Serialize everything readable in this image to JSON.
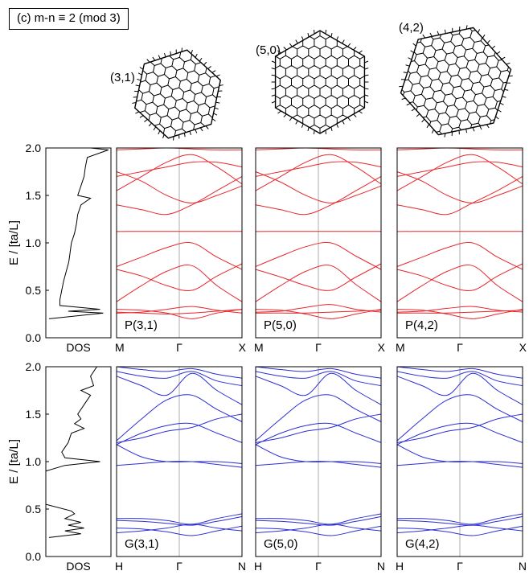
{
  "title": "(c) m-n ≡ 2 (mod 3)",
  "colors": {
    "p_bands": "#e8262c",
    "g_bands": "#2b2fd6",
    "dos": "#000000",
    "gamma_line": "#9a9a9a"
  },
  "flakes": [
    {
      "label": "(3,1)"
    },
    {
      "label": "(5,0)"
    },
    {
      "label": "(4,2)"
    }
  ],
  "ylabel": "E / [ta/L]",
  "y_ticks": [
    "0.0",
    "0.5",
    "1.0",
    "1.5",
    "2.0"
  ],
  "dos_label": "DOS",
  "chart_data": [
    {
      "type": "line",
      "row": "P",
      "ylim": [
        0,
        2.0
      ],
      "grid": false,
      "dos": {
        "label": "DOS",
        "energy": [
          0.2,
          0.26,
          0.28,
          0.3,
          0.34,
          0.4,
          0.5,
          0.6,
          0.7,
          0.8,
          0.9,
          1.0,
          1.1,
          1.2,
          1.3,
          1.4,
          1.47,
          1.5,
          1.6,
          1.7,
          1.8,
          1.9,
          1.98,
          2.0
        ],
        "density": [
          0.05,
          0.9,
          0.35,
          0.85,
          0.22,
          0.22,
          0.25,
          0.28,
          0.32,
          0.36,
          0.38,
          0.4,
          0.45,
          0.48,
          0.5,
          0.55,
          0.7,
          0.5,
          0.55,
          0.6,
          0.62,
          0.65,
          0.98,
          0.7
        ]
      },
      "panels": [
        {
          "label": "P(3,1)",
          "x_ticks": [
            "M",
            "Γ",
            "X"
          ],
          "bands": [
            [
              0.26,
              0.27,
              0.3,
              0.33,
              0.29,
              0.26
            ],
            [
              0.3,
              0.29,
              0.26,
              0.2,
              0.26,
              0.3
            ],
            [
              0.27,
              0.26,
              0.25,
              0.26,
              0.28,
              0.3
            ],
            [
              0.38,
              0.55,
              0.7,
              0.76,
              0.55,
              0.38
            ],
            [
              0.72,
              0.65,
              0.55,
              0.5,
              0.65,
              0.78
            ],
            [
              0.75,
              0.85,
              0.95,
              1.0,
              0.85,
              0.72
            ],
            [
              1.12,
              1.12,
              1.12,
              1.12,
              1.12,
              1.12
            ],
            [
              1.4,
              1.35,
              1.3,
              1.4,
              1.55,
              1.7
            ],
            [
              1.75,
              1.65,
              1.5,
              1.42,
              1.5,
              1.6
            ],
            [
              1.55,
              1.7,
              1.85,
              1.93,
              1.8,
              1.62
            ],
            [
              1.7,
              1.75,
              1.8,
              1.85,
              1.85,
              1.8
            ],
            [
              1.98,
              1.99,
              2.0,
              1.99,
              1.98,
              1.98
            ]
          ]
        },
        {
          "label": "P(5,0)",
          "x_ticks": [
            "M",
            "Γ",
            "X"
          ],
          "bands": [
            [
              0.27,
              0.28,
              0.32,
              0.35,
              0.3,
              0.27
            ],
            [
              0.3,
              0.29,
              0.25,
              0.2,
              0.25,
              0.3
            ],
            [
              0.26,
              0.26,
              0.26,
              0.27,
              0.28,
              0.29
            ],
            [
              0.38,
              0.55,
              0.7,
              0.76,
              0.56,
              0.38
            ],
            [
              0.72,
              0.64,
              0.55,
              0.5,
              0.64,
              0.78
            ],
            [
              0.75,
              0.86,
              0.96,
              1.0,
              0.86,
              0.72
            ],
            [
              1.12,
              1.12,
              1.12,
              1.12,
              1.12,
              1.12
            ],
            [
              1.4,
              1.35,
              1.3,
              1.4,
              1.55,
              1.7
            ],
            [
              1.75,
              1.64,
              1.5,
              1.42,
              1.5,
              1.6
            ],
            [
              1.55,
              1.7,
              1.85,
              1.93,
              1.8,
              1.62
            ],
            [
              1.7,
              1.75,
              1.8,
              1.85,
              1.85,
              1.8
            ],
            [
              1.98,
              1.99,
              2.0,
              1.99,
              1.98,
              1.98
            ]
          ]
        },
        {
          "label": "P(4,2)",
          "x_ticks": [
            "M",
            "Γ",
            "X"
          ],
          "bands": [
            [
              0.27,
              0.28,
              0.31,
              0.33,
              0.29,
              0.27
            ],
            [
              0.3,
              0.29,
              0.25,
              0.2,
              0.25,
              0.3
            ],
            [
              0.26,
              0.26,
              0.26,
              0.27,
              0.28,
              0.29
            ],
            [
              0.38,
              0.55,
              0.7,
              0.76,
              0.55,
              0.38
            ],
            [
              0.72,
              0.65,
              0.55,
              0.5,
              0.65,
              0.78
            ],
            [
              0.75,
              0.85,
              0.95,
              1.0,
              0.85,
              0.72
            ],
            [
              1.12,
              1.12,
              1.12,
              1.12,
              1.12,
              1.12
            ],
            [
              1.4,
              1.35,
              1.3,
              1.42,
              1.55,
              1.7
            ],
            [
              1.75,
              1.65,
              1.5,
              1.42,
              1.5,
              1.6
            ],
            [
              1.55,
              1.7,
              1.85,
              1.93,
              1.8,
              1.62
            ],
            [
              1.7,
              1.75,
              1.8,
              1.85,
              1.85,
              1.8
            ],
            [
              1.98,
              1.99,
              2.0,
              1.99,
              1.98,
              1.98
            ]
          ]
        }
      ]
    },
    {
      "type": "line",
      "row": "G",
      "ylim": [
        0,
        2.0
      ],
      "grid": false,
      "dos": {
        "label": "DOS",
        "energy": [
          0.2,
          0.24,
          0.27,
          0.3,
          0.33,
          0.36,
          0.4,
          0.45,
          0.48,
          0.55,
          0.7,
          0.9,
          0.96,
          1.0,
          1.04,
          1.1,
          1.2,
          1.3,
          1.35,
          1.4,
          1.45,
          1.5,
          1.6,
          1.7,
          1.75,
          1.8,
          1.9,
          2.0
        ],
        "density": [
          0.05,
          0.55,
          0.3,
          0.6,
          0.35,
          0.55,
          0.3,
          0.45,
          0.4,
          0.0,
          0.0,
          0.0,
          0.3,
          0.85,
          0.3,
          0.25,
          0.35,
          0.4,
          0.6,
          0.45,
          0.55,
          0.5,
          0.6,
          0.7,
          0.55,
          0.75,
          0.7,
          0.8
        ]
      },
      "panels": [
        {
          "label": "G(3,1)",
          "x_ticks": [
            "H",
            "Γ",
            "N"
          ],
          "bands": [
            [
              0.25,
              0.27,
              0.3,
              0.34,
              0.3,
              0.27
            ],
            [
              0.3,
              0.29,
              0.26,
              0.22,
              0.27,
              0.32
            ],
            [
              0.38,
              0.37,
              0.35,
              0.33,
              0.37,
              0.42
            ],
            [
              0.4,
              0.4,
              0.38,
              0.34,
              0.4,
              0.45
            ],
            [
              0.96,
              0.98,
              1.0,
              1.0,
              0.97,
              0.94
            ],
            [
              1.18,
              1.05,
              1.0,
              1.0,
              1.0,
              0.98
            ],
            [
              1.18,
              1.3,
              1.38,
              1.4,
              1.3,
              1.2
            ],
            [
              1.2,
              1.25,
              1.32,
              1.36,
              1.45,
              1.5
            ],
            [
              1.22,
              1.45,
              1.65,
              1.7,
              1.55,
              1.42
            ],
            [
              1.9,
              1.8,
              1.7,
              1.93,
              1.75,
              1.6
            ],
            [
              1.95,
              1.9,
              1.88,
              1.95,
              1.85,
              1.8
            ],
            [
              2.0,
              1.97,
              1.95,
              1.98,
              1.92,
              1.88
            ]
          ]
        },
        {
          "label": "G(5,0)",
          "x_ticks": [
            "H",
            "Γ",
            "N"
          ],
          "bands": [
            [
              0.25,
              0.27,
              0.3,
              0.34,
              0.3,
              0.27
            ],
            [
              0.3,
              0.29,
              0.26,
              0.22,
              0.27,
              0.32
            ],
            [
              0.38,
              0.37,
              0.35,
              0.33,
              0.37,
              0.42
            ],
            [
              0.4,
              0.4,
              0.38,
              0.34,
              0.4,
              0.45
            ],
            [
              0.96,
              0.98,
              1.0,
              1.0,
              0.97,
              0.94
            ],
            [
              1.18,
              1.05,
              1.0,
              1.0,
              1.0,
              0.98
            ],
            [
              1.18,
              1.3,
              1.38,
              1.4,
              1.3,
              1.2
            ],
            [
              1.2,
              1.25,
              1.32,
              1.36,
              1.45,
              1.5
            ],
            [
              1.22,
              1.45,
              1.65,
              1.7,
              1.55,
              1.42
            ],
            [
              1.9,
              1.8,
              1.7,
              1.93,
              1.75,
              1.6
            ],
            [
              1.95,
              1.9,
              1.88,
              1.95,
              1.85,
              1.8
            ],
            [
              2.0,
              1.97,
              1.95,
              1.98,
              1.92,
              1.88
            ]
          ]
        },
        {
          "label": "G(4,2)",
          "x_ticks": [
            "H",
            "Γ",
            "N"
          ],
          "bands": [
            [
              0.25,
              0.27,
              0.3,
              0.33,
              0.3,
              0.27
            ],
            [
              0.3,
              0.29,
              0.26,
              0.22,
              0.27,
              0.32
            ],
            [
              0.38,
              0.37,
              0.35,
              0.33,
              0.37,
              0.42
            ],
            [
              0.4,
              0.4,
              0.38,
              0.34,
              0.4,
              0.45
            ],
            [
              0.96,
              0.98,
              1.0,
              1.0,
              0.97,
              0.94
            ],
            [
              1.18,
              1.05,
              1.0,
              1.0,
              1.0,
              0.98
            ],
            [
              1.18,
              1.3,
              1.38,
              1.4,
              1.3,
              1.2
            ],
            [
              1.2,
              1.25,
              1.32,
              1.36,
              1.45,
              1.5
            ],
            [
              1.22,
              1.45,
              1.65,
              1.7,
              1.55,
              1.42
            ],
            [
              1.9,
              1.8,
              1.7,
              1.93,
              1.75,
              1.6
            ],
            [
              1.95,
              1.9,
              1.88,
              1.95,
              1.85,
              1.8
            ],
            [
              2.0,
              1.97,
              1.95,
              1.98,
              1.92,
              1.88
            ]
          ]
        }
      ]
    }
  ]
}
